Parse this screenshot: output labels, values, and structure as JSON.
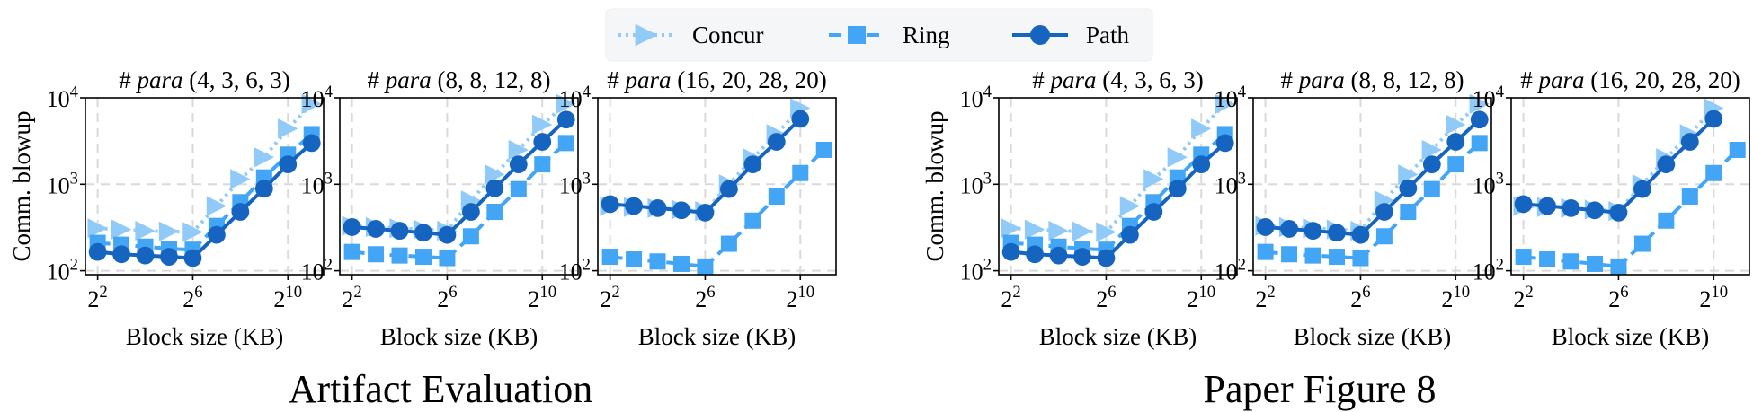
{
  "legend": [
    {
      "name": "Concur",
      "color": "#90CAF9",
      "marker": "triangle-right",
      "dash": "dotted"
    },
    {
      "name": "Ring",
      "color": "#42A5F5",
      "marker": "square",
      "dash": "dashed"
    },
    {
      "name": "Path",
      "color": "#1565C0",
      "marker": "circle",
      "dash": "solid"
    }
  ],
  "groups": [
    {
      "caption": "Artifact Evaluation"
    },
    {
      "caption": "Paper Figure 8"
    }
  ],
  "panel_titles": [
    {
      "prefix": "# ",
      "italic": "para",
      "suffix": " (4, 3, 6, 3)"
    },
    {
      "prefix": "# ",
      "italic": "para",
      "suffix": " (8, 8, 12, 8)"
    },
    {
      "prefix": "# ",
      "italic": "para",
      "suffix": " (16, 20, 28, 20)"
    }
  ],
  "axes": {
    "xlabel": "Block size (KB)",
    "ylabel": "Comm. blowup",
    "xscale": "log2",
    "yscale": "log10",
    "xticks": [
      {
        "value": 4,
        "base": "2",
        "exp": "2"
      },
      {
        "value": 64,
        "base": "2",
        "exp": "6"
      },
      {
        "value": 1024,
        "base": "2",
        "exp": "10"
      }
    ],
    "yticks": [
      {
        "value": 100,
        "base": "10",
        "exp": "2"
      },
      {
        "value": 1000,
        "base": "10",
        "exp": "3"
      },
      {
        "value": 10000,
        "base": "10",
        "exp": "4"
      }
    ],
    "grid": true
  },
  "chart_data": [
    {
      "type": "line",
      "group": "Artifact Evaluation",
      "title": "# para (4, 3, 6, 3)",
      "xlabel": "Block size (KB)",
      "ylabel": "Comm. blowup",
      "xlim": [
        2.8,
        2900
      ],
      "ylim": [
        90,
        10000
      ],
      "series": [
        {
          "name": "Concur",
          "x": [
            4,
            8,
            16,
            32,
            64,
            128,
            256,
            512,
            1024,
            2048
          ],
          "values": [
            310,
            300,
            290,
            285,
            280,
            560,
            1150,
            2050,
            4400,
            8500
          ]
        },
        {
          "name": "Ring",
          "x": [
            4,
            8,
            16,
            32,
            64,
            128,
            256,
            512,
            1024,
            2048
          ],
          "values": [
            210,
            200,
            190,
            180,
            175,
            330,
            620,
            1200,
            2200,
            3800
          ]
        },
        {
          "name": "Path",
          "x": [
            4,
            8,
            16,
            32,
            64,
            128,
            256,
            512,
            1024,
            2048
          ],
          "values": [
            165,
            155,
            150,
            145,
            140,
            260,
            480,
            890,
            1700,
            3000
          ]
        }
      ]
    },
    {
      "type": "line",
      "group": "Artifact Evaluation",
      "title": "# para (8, 8, 12, 8)",
      "xlabel": "Block size (KB)",
      "ylabel": "",
      "xlim": [
        2.8,
        2900
      ],
      "ylim": [
        90,
        10000
      ],
      "series": [
        {
          "name": "Concur",
          "x": [
            4,
            8,
            16,
            32,
            64,
            128,
            256,
            512,
            1024,
            2048
          ],
          "values": [
            330,
            320,
            310,
            300,
            290,
            650,
            1300,
            2500,
            4900,
            8500
          ]
        },
        {
          "name": "Ring",
          "x": [
            4,
            8,
            16,
            32,
            64,
            128,
            256,
            512,
            1024,
            2048
          ],
          "values": [
            165,
            155,
            150,
            145,
            140,
            250,
            480,
            880,
            1700,
            3000
          ]
        },
        {
          "name": "Path",
          "x": [
            4,
            8,
            16,
            32,
            64,
            128,
            256,
            512,
            1024,
            2048
          ],
          "values": [
            320,
            305,
            290,
            275,
            260,
            480,
            900,
            1700,
            3100,
            5600
          ]
        }
      ]
    },
    {
      "type": "line",
      "group": "Artifact Evaluation",
      "title": "# para (16, 20, 28, 20)",
      "xlabel": "Block size (KB)",
      "ylabel": "",
      "xlim": [
        2.8,
        2900
      ],
      "ylim": [
        90,
        10000
      ],
      "series": [
        {
          "name": "Concur",
          "x": [
            4,
            8,
            16,
            32,
            64,
            128,
            256,
            512,
            1024
          ],
          "values": [
            560,
            545,
            530,
            510,
            490,
            1000,
            2000,
            3800,
            7600
          ]
        },
        {
          "name": "Ring",
          "x": [
            4,
            8,
            16,
            32,
            64,
            128,
            256,
            512,
            1024,
            2048
          ],
          "values": [
            145,
            135,
            128,
            120,
            112,
            205,
            380,
            720,
            1350,
            2500
          ]
        },
        {
          "name": "Path",
          "x": [
            4,
            8,
            16,
            32,
            64,
            128,
            256,
            512,
            1024
          ],
          "values": [
            590,
            560,
            530,
            500,
            470,
            880,
            1700,
            3100,
            5700
          ]
        }
      ]
    },
    {
      "type": "line",
      "group": "Paper Figure 8",
      "title": "# para (4, 3, 6, 3)",
      "xlabel": "Block size (KB)",
      "ylabel": "Comm. blowup",
      "xlim": [
        2.8,
        2900
      ],
      "ylim": [
        90,
        10000
      ],
      "series": [
        {
          "name": "Concur",
          "x": [
            4,
            8,
            16,
            32,
            64,
            128,
            256,
            512,
            1024,
            2048
          ],
          "values": [
            310,
            300,
            290,
            285,
            280,
            560,
            1150,
            2050,
            4400,
            8500
          ]
        },
        {
          "name": "Ring",
          "x": [
            4,
            8,
            16,
            32,
            64,
            128,
            256,
            512,
            1024,
            2048
          ],
          "values": [
            210,
            200,
            190,
            180,
            175,
            330,
            620,
            1200,
            2200,
            3800
          ]
        },
        {
          "name": "Path",
          "x": [
            4,
            8,
            16,
            32,
            64,
            128,
            256,
            512,
            1024,
            2048
          ],
          "values": [
            165,
            155,
            150,
            145,
            140,
            260,
            480,
            890,
            1700,
            3000
          ]
        }
      ]
    },
    {
      "type": "line",
      "group": "Paper Figure 8",
      "title": "# para (8, 8, 12, 8)",
      "xlabel": "Block size (KB)",
      "ylabel": "",
      "xlim": [
        2.8,
        2900
      ],
      "ylim": [
        90,
        10000
      ],
      "series": [
        {
          "name": "Concur",
          "x": [
            4,
            8,
            16,
            32,
            64,
            128,
            256,
            512,
            1024,
            2048
          ],
          "values": [
            330,
            320,
            310,
            300,
            290,
            650,
            1300,
            2500,
            4900,
            8500
          ]
        },
        {
          "name": "Ring",
          "x": [
            4,
            8,
            16,
            32,
            64,
            128,
            256,
            512,
            1024,
            2048
          ],
          "values": [
            165,
            155,
            150,
            145,
            140,
            250,
            480,
            880,
            1700,
            3000
          ]
        },
        {
          "name": "Path",
          "x": [
            4,
            8,
            16,
            32,
            64,
            128,
            256,
            512,
            1024,
            2048
          ],
          "values": [
            320,
            305,
            290,
            275,
            260,
            480,
            900,
            1700,
            3100,
            5600
          ]
        }
      ]
    },
    {
      "type": "line",
      "group": "Paper Figure 8",
      "title": "# para (16, 20, 28, 20)",
      "xlabel": "Block size (KB)",
      "ylabel": "",
      "xlim": [
        2.8,
        2900
      ],
      "ylim": [
        90,
        10000
      ],
      "series": [
        {
          "name": "Concur",
          "x": [
            4,
            8,
            16,
            32,
            64,
            128,
            256,
            512,
            1024
          ],
          "values": [
            560,
            545,
            530,
            510,
            490,
            1000,
            2000,
            3800,
            7600
          ]
        },
        {
          "name": "Ring",
          "x": [
            4,
            8,
            16,
            32,
            64,
            128,
            256,
            512,
            1024,
            2048
          ],
          "values": [
            145,
            135,
            128,
            120,
            112,
            205,
            380,
            720,
            1350,
            2500
          ]
        },
        {
          "name": "Path",
          "x": [
            4,
            8,
            16,
            32,
            64,
            128,
            256,
            512,
            1024
          ],
          "values": [
            590,
            560,
            530,
            500,
            470,
            880,
            1700,
            3100,
            5700
          ]
        }
      ]
    }
  ]
}
